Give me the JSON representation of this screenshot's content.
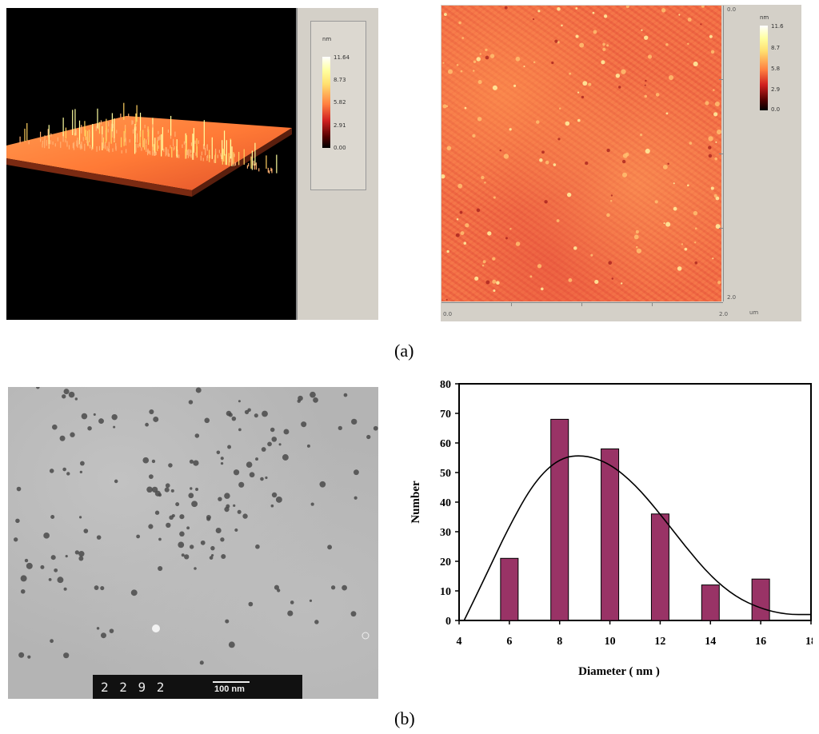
{
  "panel_a": {
    "label": "(a)",
    "afm3d": {
      "unit": "nm",
      "colorbar_ticks": [
        "11.64",
        "8.73",
        "5.82",
        "2.91",
        "0.00"
      ]
    },
    "afm2d": {
      "unit": "nm",
      "colorbar_ticks": [
        "11.6",
        "8.7",
        "5.8",
        "2.9",
        "0.0"
      ],
      "y_axis_ticks": [
        "0.0",
        "2.0"
      ],
      "x_axis_ticks": [
        "0.0",
        "2.0"
      ],
      "x_unit": "um"
    }
  },
  "panel_b": {
    "label": "(b)",
    "tem": {
      "plate_number": "2 2 9 2",
      "scale_bar": "100 nm"
    }
  },
  "chart_data": {
    "type": "bar",
    "categories": [
      "6",
      "8",
      "10",
      "12",
      "14",
      "16"
    ],
    "x": [
      6,
      8,
      10,
      12,
      14,
      16
    ],
    "values": [
      21,
      68,
      58,
      36,
      12,
      14
    ],
    "fit_curve": {
      "x": [
        4.2,
        5,
        6,
        7,
        8,
        9,
        10,
        11,
        12,
        13,
        14,
        15,
        16,
        17,
        18
      ],
      "y": [
        0,
        14,
        32,
        47,
        55,
        56,
        53,
        46,
        36,
        25,
        15,
        8,
        4,
        2,
        2
      ]
    },
    "xlabel": "Diameter ( nm )",
    "ylabel": "Number",
    "xlim": [
      4,
      18
    ],
    "ylim": [
      0,
      80
    ],
    "x_ticks": [
      4,
      6,
      8,
      10,
      12,
      14,
      16,
      18
    ],
    "y_ticks": [
      0,
      10,
      20,
      30,
      40,
      50,
      60,
      70,
      80
    ],
    "bar_color": "#993366",
    "grid": false,
    "legend": false
  }
}
